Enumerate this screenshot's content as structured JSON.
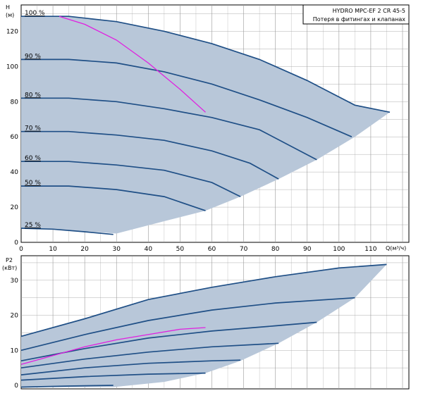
{
  "title_box": {
    "line1": "HYDRO MPC-EF 2 CR 45-5",
    "line2": "Потеря в фитингах и клапанах"
  },
  "colors": {
    "fill": "#b8c7d9",
    "curve": "#1f4f86",
    "system_curve": "#e020e0",
    "grid": "#9a9a9a"
  },
  "chart_data": [
    {
      "type": "line",
      "name": "head",
      "y_axis_label_line1": "H",
      "y_axis_label_line2": "(м)",
      "x_axis_label": "Q(м³/ч)",
      "xlim": [
        0,
        122
      ],
      "ylim": [
        0,
        135
      ],
      "x_ticks": [
        0,
        10,
        20,
        30,
        40,
        50,
        60,
        70,
        80,
        90,
        100,
        110
      ],
      "y_ticks": [
        0,
        20,
        40,
        60,
        80,
        100,
        120
      ],
      "grid": true,
      "region_upper": [
        [
          0,
          128.5
        ],
        [
          15,
          128.5
        ],
        [
          30,
          125.5
        ],
        [
          45,
          120
        ],
        [
          60,
          113
        ],
        [
          75,
          104
        ],
        [
          90,
          92
        ],
        [
          105,
          78
        ],
        [
          116,
          74
        ]
      ],
      "region_lower": [
        [
          116,
          74
        ],
        [
          105,
          60
        ],
        [
          93,
          47
        ],
        [
          81,
          36
        ],
        [
          69,
          26
        ],
        [
          58,
          18
        ],
        [
          45,
          12
        ],
        [
          30,
          5
        ],
        [
          15,
          7
        ],
        [
          0,
          8
        ]
      ],
      "series": [
        {
          "label": "100 %",
          "x": [
            0,
            15,
            30,
            45,
            60,
            75,
            90,
            105,
            116
          ],
          "y": [
            128.5,
            128.5,
            125.5,
            120,
            113,
            104,
            92,
            78,
            74
          ]
        },
        {
          "label": "90 %",
          "x": [
            0,
            15,
            30,
            45,
            60,
            75,
            90,
            104
          ],
          "y": [
            104,
            104,
            102,
            97,
            90,
            81,
            71,
            60
          ]
        },
        {
          "label": "80 %",
          "x": [
            0,
            15,
            30,
            45,
            60,
            75,
            93
          ],
          "y": [
            82,
            82,
            80,
            76,
            71,
            64,
            47
          ]
        },
        {
          "label": "70 %",
          "x": [
            0,
            15,
            30,
            45,
            60,
            72,
            81
          ],
          "y": [
            63,
            63,
            61,
            58,
            52,
            45,
            36
          ]
        },
        {
          "label": "60 %",
          "x": [
            0,
            15,
            30,
            45,
            60,
            69
          ],
          "y": [
            46,
            46,
            44,
            41,
            34,
            26
          ]
        },
        {
          "label": "50 %",
          "x": [
            0,
            15,
            30,
            45,
            58
          ],
          "y": [
            32,
            32,
            30,
            26,
            18
          ]
        },
        {
          "label": "25 %",
          "x": [
            0,
            10,
            20,
            29
          ],
          "y": [
            8,
            7.5,
            6,
            4.5
          ]
        }
      ],
      "system_curve": {
        "x": [
          12,
          20,
          30,
          40,
          50,
          58
        ],
        "y": [
          128.5,
          124,
          115,
          102,
          87,
          74
        ]
      }
    },
    {
      "type": "line",
      "name": "power",
      "y_axis_label_line1": "P2",
      "y_axis_label_line2": "(кВт)",
      "xlim": [
        0,
        122
      ],
      "ylim": [
        -1,
        37
      ],
      "x_ticks": [
        0,
        10,
        20,
        30,
        40,
        50,
        60,
        70,
        80,
        90,
        100,
        110
      ],
      "y_ticks": [
        0,
        10,
        20,
        30
      ],
      "grid": true,
      "region_upper": [
        [
          0,
          14
        ],
        [
          20,
          19
        ],
        [
          40,
          24.5
        ],
        [
          60,
          28
        ],
        [
          80,
          31
        ],
        [
          100,
          33.5
        ],
        [
          115,
          34.5
        ]
      ],
      "region_lower": [
        [
          115,
          34.5
        ],
        [
          105,
          25
        ],
        [
          93,
          18
        ],
        [
          81,
          12
        ],
        [
          69,
          7
        ],
        [
          58,
          3.5
        ],
        [
          45,
          1
        ],
        [
          29,
          -0.5
        ],
        [
          0,
          -0.5
        ]
      ],
      "series": [
        {
          "x": [
            0,
            20,
            40,
            60,
            80,
            100,
            115
          ],
          "y": [
            14,
            19,
            24.5,
            28,
            31,
            33.5,
            34.5
          ]
        },
        {
          "x": [
            0,
            20,
            40,
            60,
            80,
            105
          ],
          "y": [
            10,
            14.5,
            18.5,
            21.5,
            23.5,
            25
          ]
        },
        {
          "x": [
            0,
            20,
            40,
            60,
            80,
            93
          ],
          "y": [
            7,
            10.5,
            13.5,
            15.5,
            17,
            18
          ]
        },
        {
          "x": [
            0,
            20,
            40,
            60,
            81
          ],
          "y": [
            5,
            7.5,
            9.5,
            11,
            12
          ]
        },
        {
          "x": [
            0,
            20,
            40,
            60,
            69
          ],
          "y": [
            3,
            5,
            6.3,
            7,
            7.2
          ]
        },
        {
          "x": [
            0,
            20,
            40,
            58
          ],
          "y": [
            1.5,
            2.5,
            3.2,
            3.5
          ]
        },
        {
          "x": [
            0,
            15,
            29
          ],
          "y": [
            -0.5,
            -0.2,
            0
          ]
        }
      ],
      "system_curve": {
        "x": [
          0,
          10,
          20,
          30,
          40,
          50,
          58
        ],
        "y": [
          6,
          8.5,
          11,
          13,
          14.5,
          16,
          16.5
        ]
      }
    }
  ]
}
